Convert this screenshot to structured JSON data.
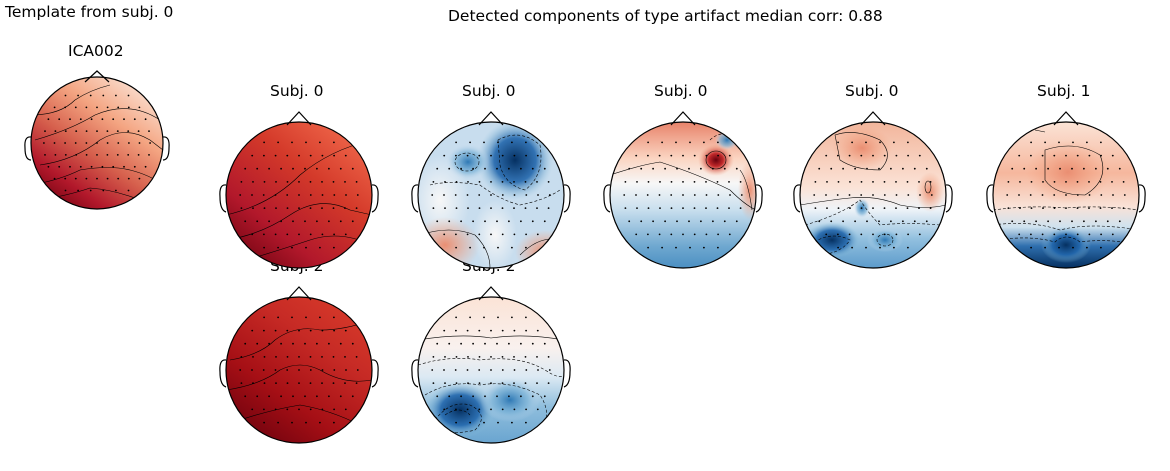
{
  "figure": {
    "left_title": "Template from subj. 0",
    "main_title": "Detected components of type artifact median corr: 0.88"
  },
  "template": {
    "title": "ICA002"
  },
  "topomaps": [
    {
      "title": "Subj. 0",
      "pattern": "red_gradient"
    },
    {
      "title": "Subj. 0",
      "pattern": "blue_mix"
    },
    {
      "title": "Subj. 0",
      "pattern": "red_top_blue_bottom"
    },
    {
      "title": "Subj. 0",
      "pattern": "light_red_blue_low"
    },
    {
      "title": "Subj. 1",
      "pattern": "red_top_darkblue_bottom"
    },
    {
      "title": "Subj. 2",
      "pattern": "dark_red"
    },
    {
      "title": "Subj. 2",
      "pattern": "blue_bottom_left"
    }
  ],
  "colors": {
    "red_dark": "#67000d",
    "red": "#d62f27",
    "white": "#f7f7f7",
    "blue": "#2166ac",
    "blue_dark": "#053061"
  }
}
